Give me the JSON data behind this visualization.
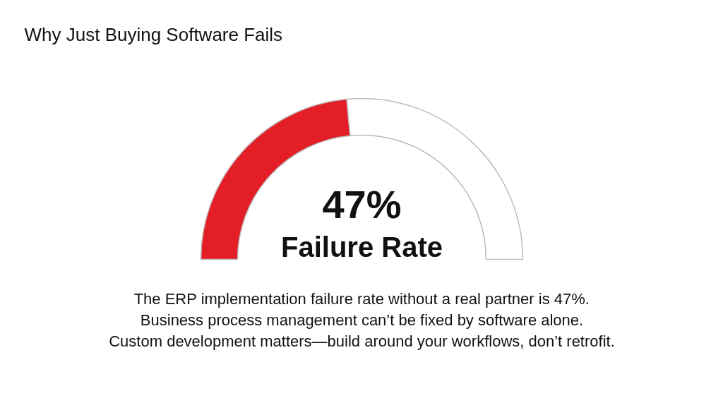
{
  "chart_data": {
    "type": "donut",
    "title": "Why Just Buying Software Fails",
    "categories": [
      null,
      null
    ],
    "values": [
      47,
      53
    ],
    "colors": [
      "#e41e26",
      "#ffffff"
    ],
    "value_labels": [
      "47%",
      null
    ],
    "annotations": [
      "Failure Rate",
      "The ERP implementation failure rate without a real partner is 47%.",
      "Business process management can’t be fixed by software alone.",
      "Custom development matters—build around your workflows, don’t retrofit."
    ]
  }
}
